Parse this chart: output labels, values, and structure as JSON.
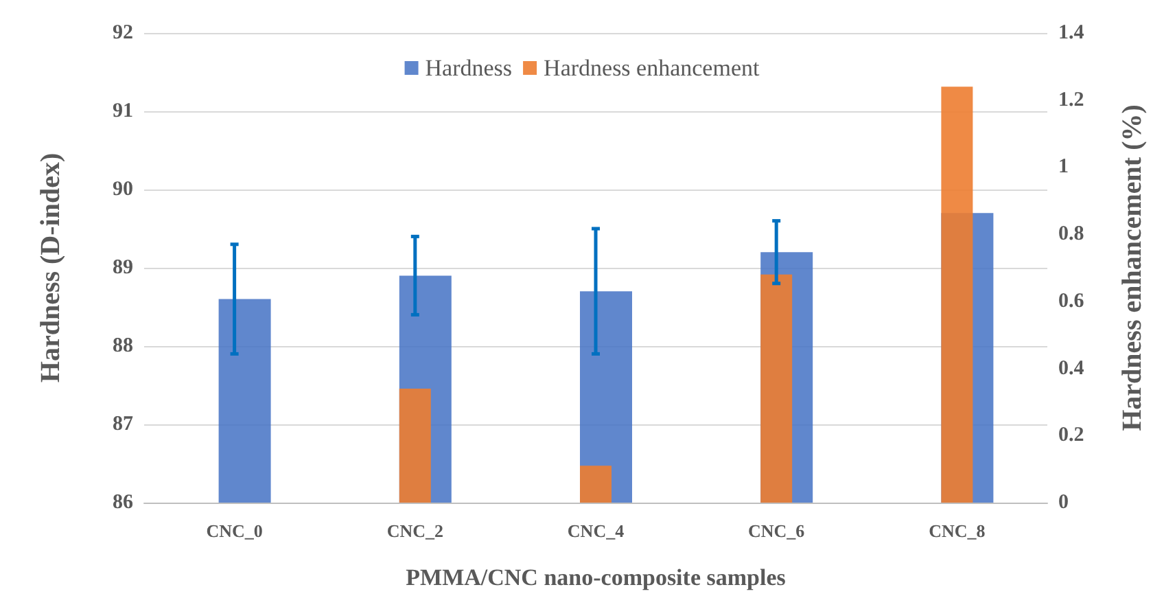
{
  "chart_data": {
    "type": "bar",
    "xlabel": "PMMA/CNC nano-composite samples",
    "ylabel": "Hardness (D-index)",
    "y2label": "Hardness enhancement (%)",
    "categories": [
      "CNC_0",
      "CNC_2",
      "CNC_4",
      "CNC_6",
      "CNC_8"
    ],
    "series": [
      {
        "name": "Hardness",
        "color": "#4472c4",
        "values": [
          88.6,
          88.9,
          88.7,
          89.2,
          89.7
        ],
        "errors": [
          [
            87.9,
            89.3
          ],
          [
            88.4,
            89.4
          ],
          [
            87.9,
            89.5
          ],
          [
            88.8,
            89.6
          ],
          null
        ]
      },
      {
        "name": "Hardness enhancement",
        "color": "#ed7d31",
        "axis": "y2",
        "values": [
          0,
          0.34,
          0.11,
          0.68,
          1.24
        ]
      }
    ],
    "ylim": [
      86,
      92
    ],
    "yticks": [
      86,
      87,
      88,
      89,
      90,
      91,
      92
    ],
    "y2lim": [
      0,
      1.4
    ],
    "y2ticks": [
      0,
      0.2,
      0.4,
      0.6,
      0.8,
      1,
      1.2,
      1.4
    ],
    "grid": "y",
    "legend": "top"
  }
}
